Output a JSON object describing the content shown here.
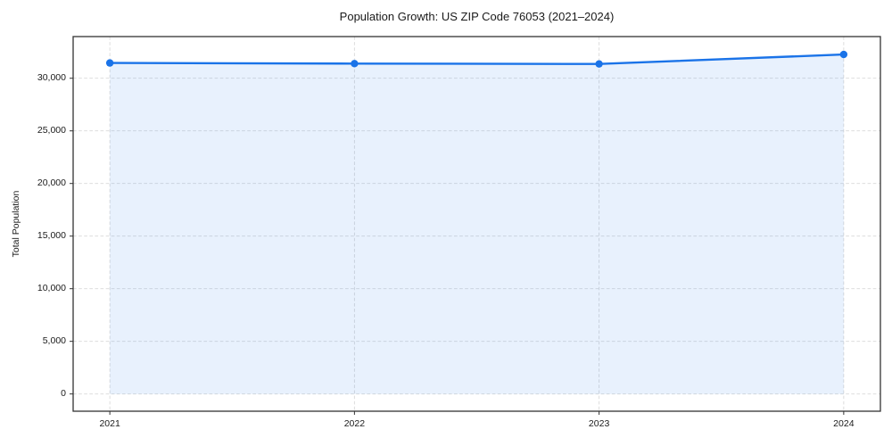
{
  "figure": {
    "title": "Population Growth: US ZIP Code 76053 (2021–2024)"
  },
  "chart_data": {
    "type": "line",
    "title": "Population Growth: US ZIP Code 76053 (2021–2024)",
    "xlabel": "",
    "ylabel": "Total Population",
    "x": [
      2021,
      2022,
      2023,
      2024
    ],
    "series": [
      {
        "name": "Total Population",
        "values": [
          31450,
          31390,
          31360,
          32260
        ]
      }
    ],
    "xticks": [
      2021,
      2022,
      2023,
      2024
    ],
    "yticks": [
      0,
      5000,
      10000,
      15000,
      20000,
      25000,
      30000
    ],
    "xlim": [
      2020.85,
      2024.15
    ],
    "ylim": [
      -1640,
      33960
    ],
    "grid": true,
    "grid_style": "dashed",
    "legend_position": "none",
    "line_color": "#1a73e8",
    "fill_color": "rgba(26,115,232,0.10)",
    "marker": "circle",
    "grid_color": "#d9d9d9",
    "spine_color": "#333333"
  }
}
